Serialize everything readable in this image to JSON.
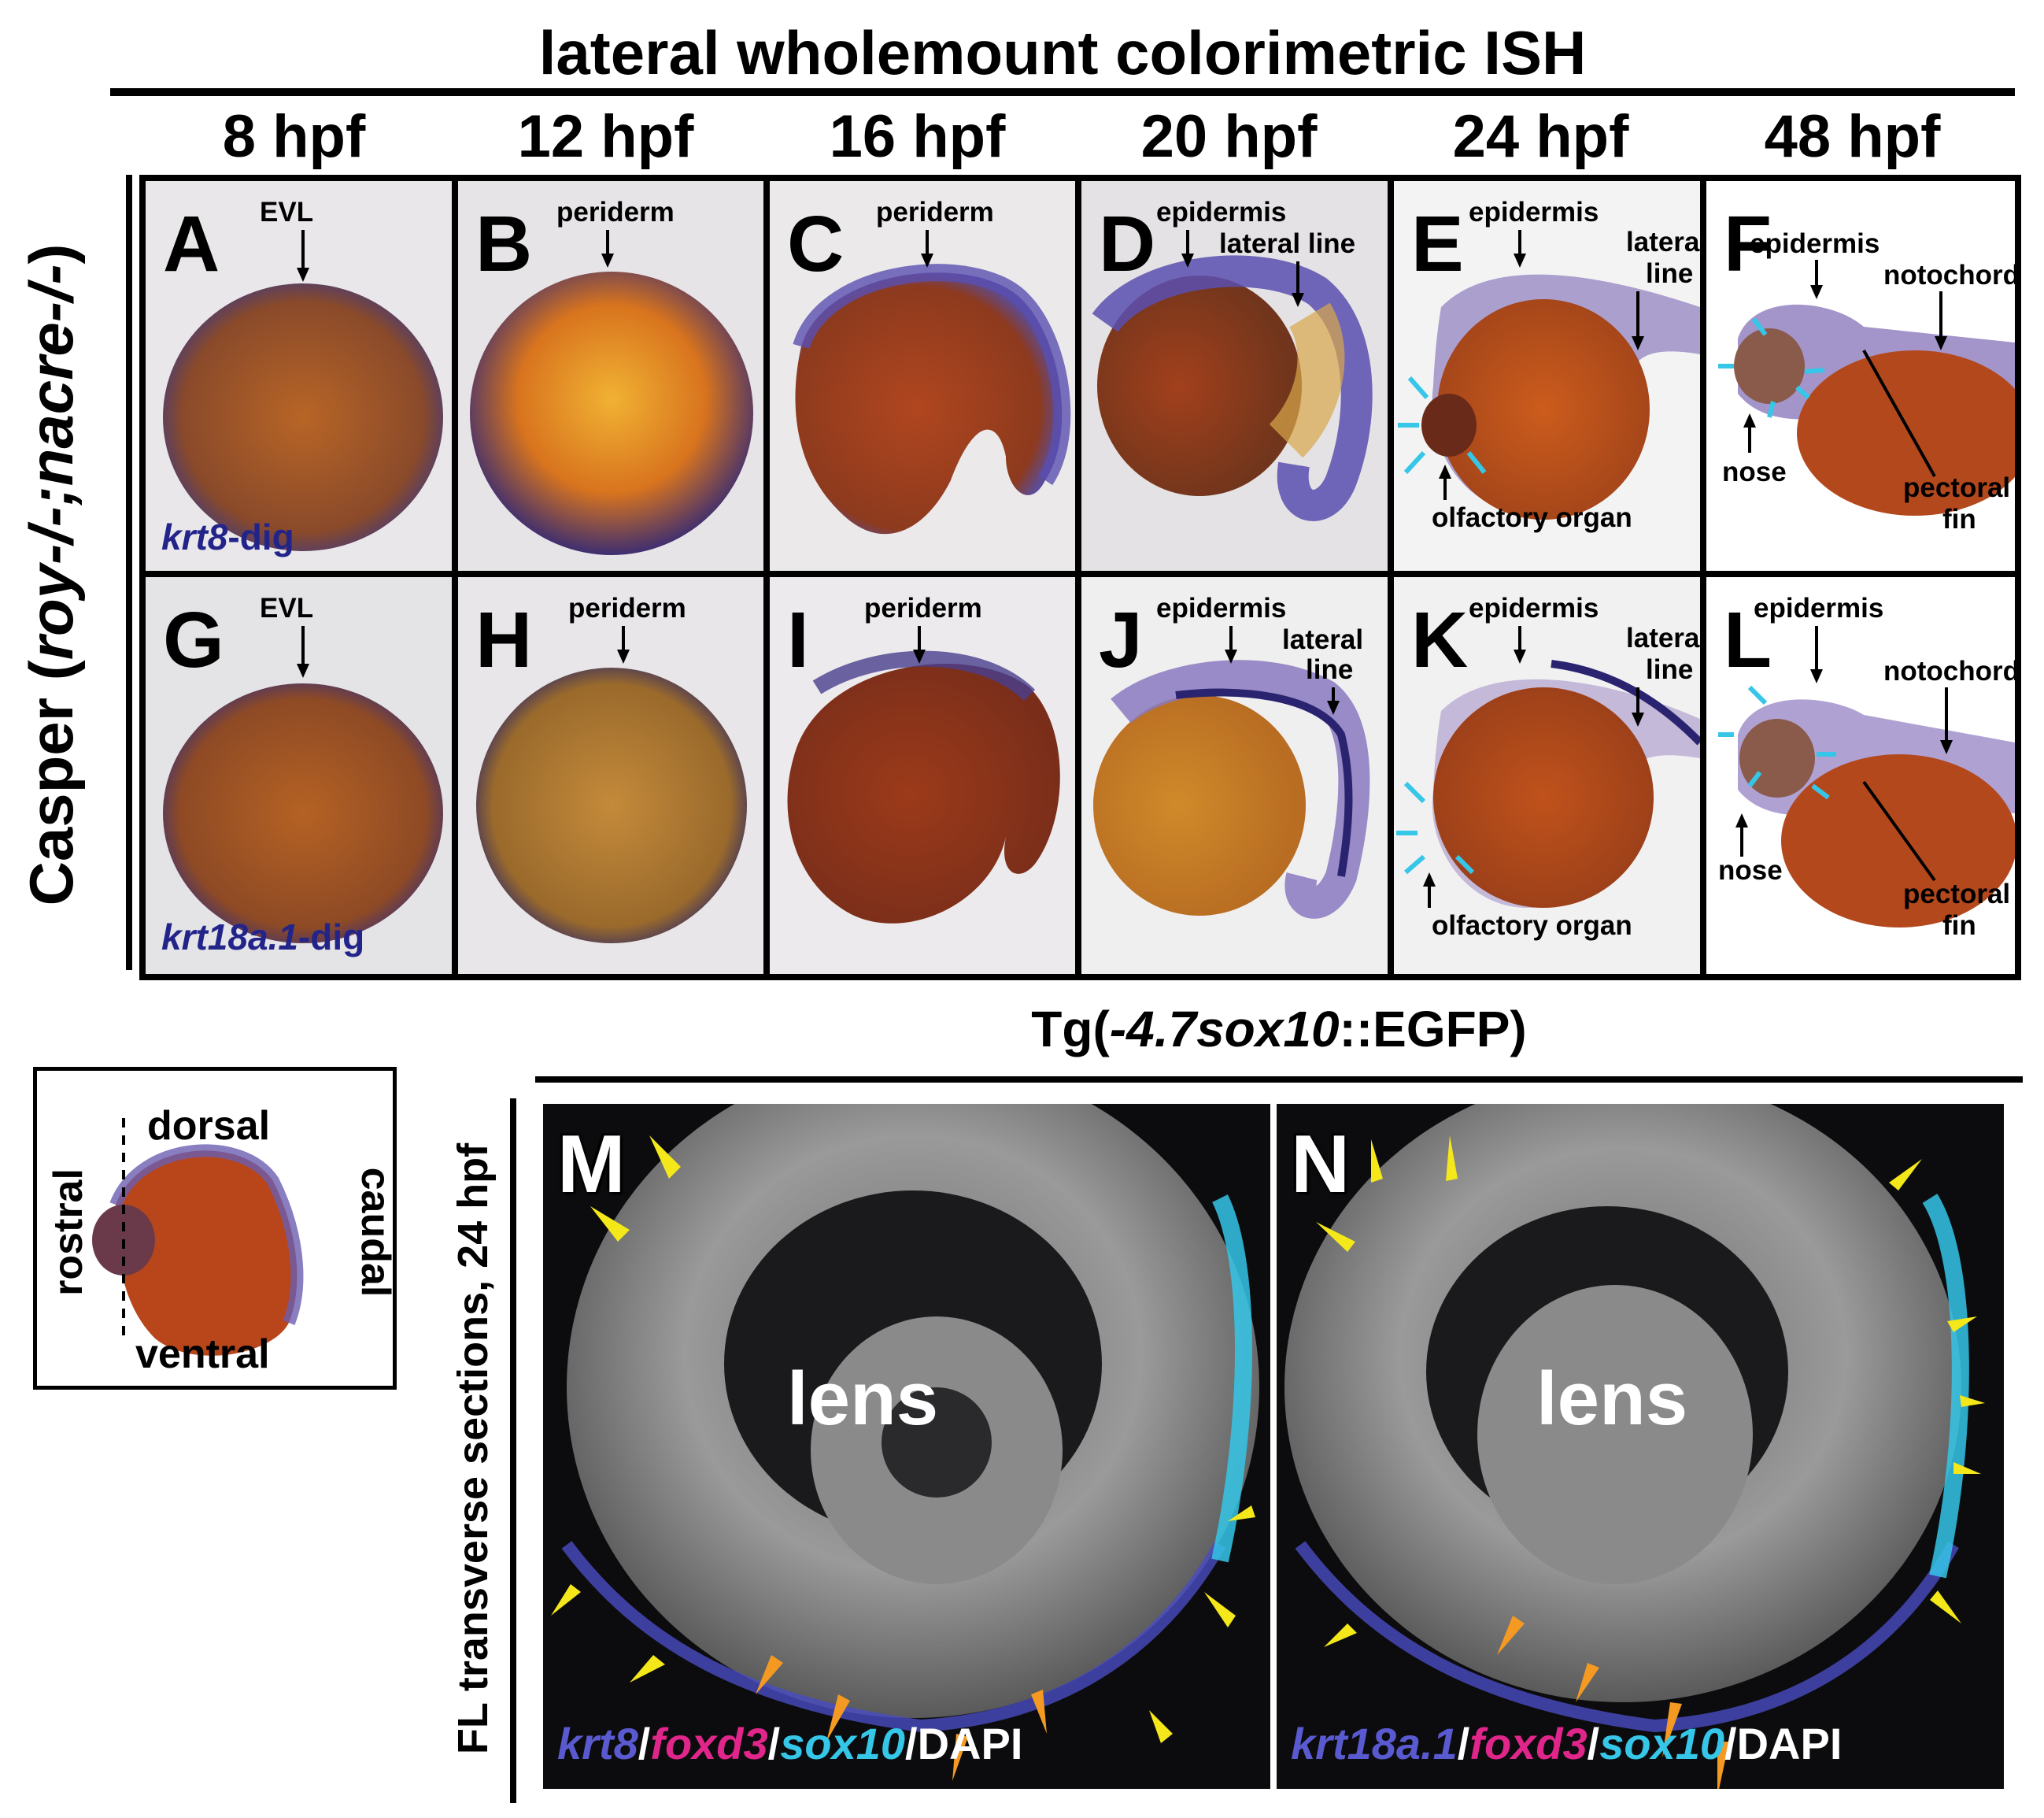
{
  "figure": {
    "title": "lateral wholemount colorimetric ISH",
    "timepoints": [
      "8 hpf",
      "12 hpf",
      "16 hpf",
      "20 hpf",
      "24 hpf",
      "48 hpf"
    ],
    "row_label_prefix": "Casper (",
    "row_label_genotype": "roy-/-;nacre-/-",
    "row_label_suffix": ")",
    "colors": {
      "probe": "#23248a",
      "embryo": "#b8461a",
      "stain": "#5a4fc4",
      "cyan": "#35c6e8",
      "yellow": "#f5e81a",
      "orange": "#f49a22"
    }
  },
  "top_row": {
    "probe_gene": "krt8",
    "probe_suffix": "-dig",
    "panels": [
      {
        "letter": "A",
        "labels": [
          "EVL"
        ]
      },
      {
        "letter": "B",
        "labels": [
          "periderm"
        ]
      },
      {
        "letter": "C",
        "labels": [
          "periderm"
        ]
      },
      {
        "letter": "D",
        "labels": [
          "epidermis",
          "lateral line"
        ]
      },
      {
        "letter": "E",
        "labels": [
          "epidermis",
          "lateral",
          "line",
          "olfactory organ"
        ]
      },
      {
        "letter": "F",
        "labels": [
          "epidermis",
          "notochord",
          "nose",
          "pectoral",
          "fin"
        ]
      }
    ]
  },
  "bottom_row": {
    "probe_gene": "krt18a.1",
    "probe_suffix": "-dig",
    "panels": [
      {
        "letter": "G",
        "labels": [
          "EVL"
        ]
      },
      {
        "letter": "H",
        "labels": [
          "periderm"
        ]
      },
      {
        "letter": "I",
        "labels": [
          "periderm"
        ]
      },
      {
        "letter": "J",
        "labels": [
          "epidermis",
          "lateral",
          "line"
        ]
      },
      {
        "letter": "K",
        "labels": [
          "epidermis",
          "lateral",
          "line",
          "olfactory organ"
        ]
      },
      {
        "letter": "L",
        "labels": [
          "epidermis",
          "notochord",
          "nose",
          "pectoral",
          "fin"
        ]
      }
    ]
  },
  "orientation": {
    "dorsal": "dorsal",
    "ventral": "ventral",
    "rostral": "rostral",
    "caudal": "caudal"
  },
  "fluorescence": {
    "transgene_prefix": "Tg(",
    "transgene_italic": "-4.7sox10",
    "transgene_suffix": "::EGFP)",
    "side_label": "FL transverse sections, 24 hpf",
    "panels": [
      {
        "letter": "M",
        "lens": "lens",
        "g1": "krt8",
        "g2": "foxd3",
        "g3": "sox10",
        "g4": "DAPI"
      },
      {
        "letter": "N",
        "lens": "lens",
        "g1": "krt18a.1",
        "g2": "foxd3",
        "g3": "sox10",
        "g4": "DAPI"
      }
    ],
    "separator": "/"
  }
}
